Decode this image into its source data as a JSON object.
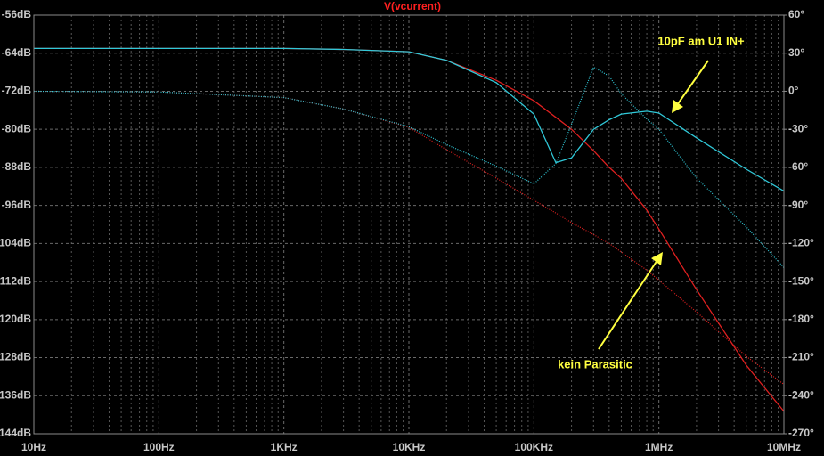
{
  "chart_data": {
    "type": "line",
    "title": "V(vcurrent)",
    "title_color": "#ff2020",
    "background": "#000000",
    "x_scale": "log",
    "grid": true,
    "x": [
      10,
      100,
      1000,
      3000,
      10000,
      20000,
      50000,
      100000,
      150000,
      200000,
      300000,
      400000,
      500000,
      800000,
      1000000,
      2000000,
      5000000,
      10000000
    ],
    "xlim": [
      10,
      10000000
    ],
    "xticks": [
      {
        "value": 10,
        "label": "10Hz"
      },
      {
        "value": 100,
        "label": "100Hz"
      },
      {
        "value": 1000,
        "label": "1KHz"
      },
      {
        "value": 10000,
        "label": "10KHz"
      },
      {
        "value": 100000,
        "label": "100KHz"
      },
      {
        "value": 1000000,
        "label": "1MHz"
      },
      {
        "value": 10000000,
        "label": "10MHz"
      }
    ],
    "ylim": [
      -144,
      -56
    ],
    "yticks": [
      {
        "value": -56,
        "label": "-56dB"
      },
      {
        "value": -64,
        "label": "-64dB"
      },
      {
        "value": -72,
        "label": "-72dB"
      },
      {
        "value": -80,
        "label": "-80dB"
      },
      {
        "value": -88,
        "label": "-88dB"
      },
      {
        "value": -96,
        "label": "-96dB"
      },
      {
        "value": -104,
        "label": "104dB"
      },
      {
        "value": -112,
        "label": "112dB"
      },
      {
        "value": -120,
        "label": "120dB"
      },
      {
        "value": -128,
        "label": "128dB"
      },
      {
        "value": -136,
        "label": "136dB"
      },
      {
        "value": -144,
        "label": "144dB"
      }
    ],
    "y2lim": [
      -270,
      60
    ],
    "y2ticks": [
      {
        "value": 60,
        "label": "60°"
      },
      {
        "value": 30,
        "label": "30°"
      },
      {
        "value": 0,
        "label": "0°"
      },
      {
        "value": -30,
        "label": "-30°"
      },
      {
        "value": -60,
        "label": "-60°"
      },
      {
        "value": -90,
        "label": "-90°"
      },
      {
        "value": -120,
        "label": "-120°"
      },
      {
        "value": -150,
        "label": "-150°"
      },
      {
        "value": -180,
        "label": "-180°"
      },
      {
        "value": -210,
        "label": "-210°"
      },
      {
        "value": -240,
        "label": "-240°"
      },
      {
        "value": -270,
        "label": "-270°"
      }
    ],
    "series": [
      {
        "color": "#e02020",
        "style": "solid",
        "values": [
          -63,
          -63,
          -63,
          -63.2,
          -63.7,
          -65.5,
          -69.7,
          -74,
          -77.5,
          -80,
          -84.5,
          -88,
          -90.3,
          -97,
          -101,
          -113.7,
          -129.6,
          -139.3
        ]
      },
      {
        "color": "#30c8d8",
        "style": "solid",
        "values": [
          -63,
          -63,
          -63,
          -63.2,
          -63.7,
          -65.5,
          -70.2,
          -76.8,
          -87,
          -86,
          -80,
          -78,
          -76.8,
          -76.2,
          -76.6,
          -81.8,
          -88.4,
          -93
        ]
      },
      {
        "color": "#e02020",
        "style": "dotted",
        "axis": "y2",
        "values": [
          0,
          -0.5,
          -5,
          -14,
          -28.5,
          -46,
          -68.5,
          -86,
          -96,
          -103.6,
          -113,
          -120,
          -126.8,
          -141,
          -149,
          -174,
          -209,
          -231
        ]
      },
      {
        "color": "#30c8d8",
        "style": "dotted",
        "axis": "y2",
        "values": [
          0,
          -0.5,
          -5,
          -14,
          -28,
          -42,
          -59,
          -73,
          -57,
          -26,
          19,
          12,
          -2,
          -22,
          -30,
          -68.5,
          -107,
          -139
        ]
      }
    ],
    "annotations": [
      {
        "text": "10pF am U1 IN+",
        "color": "#ffff40"
      },
      {
        "text": "kein Parasitic",
        "color": "#ffff40"
      }
    ]
  }
}
